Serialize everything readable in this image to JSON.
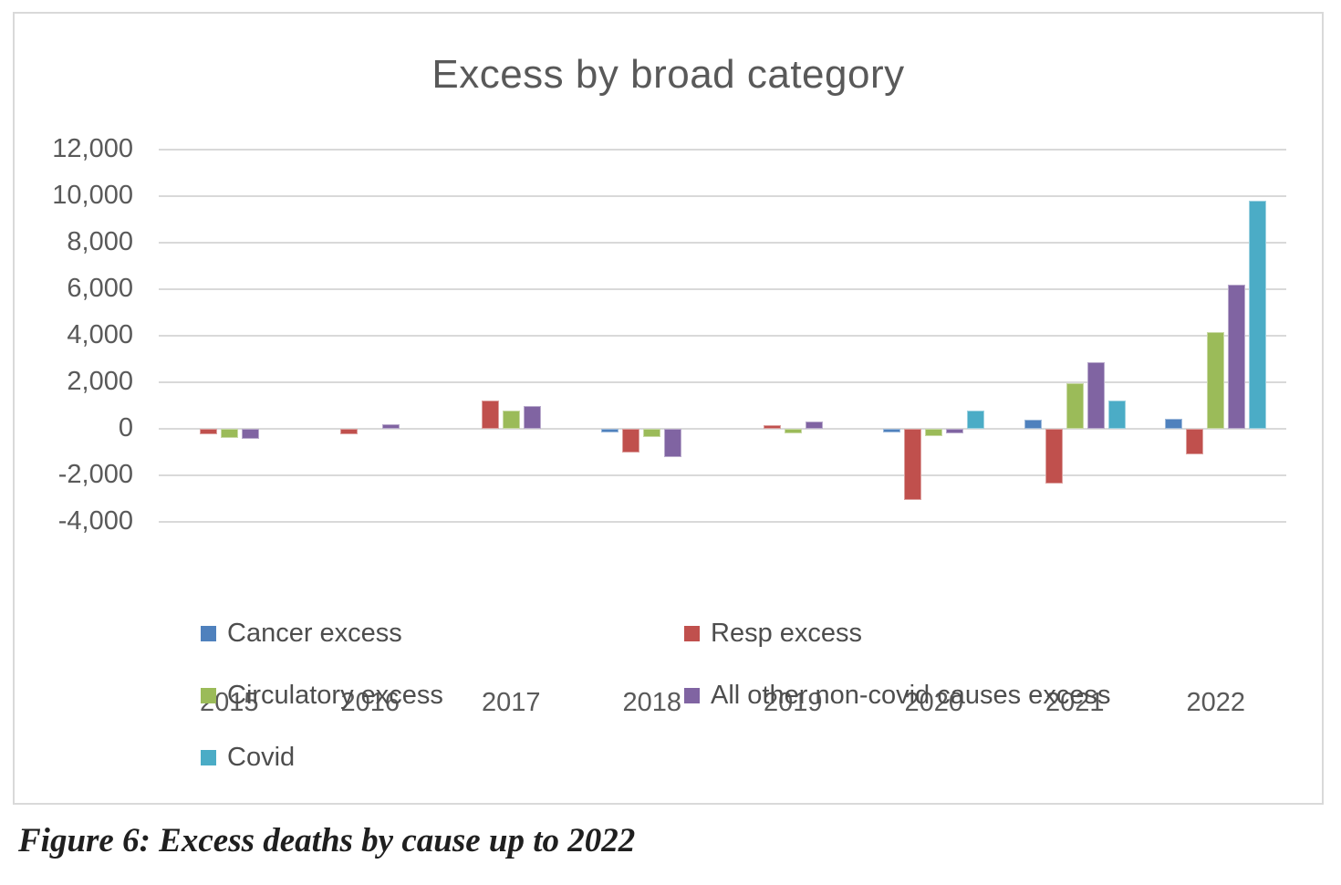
{
  "title": "Excess by broad category",
  "caption": "Figure 6: Excess deaths by cause up to 2022",
  "colors": {
    "cancer": "#4F81BD",
    "resp": "#C0504D",
    "circulatory": "#9BBB59",
    "all_other": "#8064A2",
    "covid": "#4BACC6",
    "gridline": "#D9D9D9",
    "axis_text": "#595959",
    "title_text": "#595959",
    "frame_border": "#D9D9D9"
  },
  "chart_data": {
    "type": "bar",
    "title": "Excess by broad category",
    "categories": [
      "2015",
      "2016",
      "2017",
      "2018",
      "2019",
      "2020",
      "2021",
      "2022"
    ],
    "series": [
      {
        "name": "Cancer excess",
        "color": "#4F81BD",
        "values": [
          0,
          0,
          0,
          -150,
          0,
          -150,
          400,
          450
        ]
      },
      {
        "name": "Resp excess",
        "color": "#C0504D",
        "values": [
          -250,
          -250,
          1200,
          -1000,
          150,
          -3050,
          -2350,
          -1100
        ]
      },
      {
        "name": "Circulatory excess",
        "color": "#9BBB59",
        "values": [
          -400,
          0,
          800,
          -350,
          -200,
          -300,
          1950,
          4150
        ]
      },
      {
        "name": "All other non-covid causes excess",
        "color": "#8064A2",
        "values": [
          -420,
          200,
          1000,
          -1200,
          300,
          -200,
          2850,
          6200
        ]
      },
      {
        "name": "Covid",
        "color": "#4BACC6",
        "values": [
          0,
          0,
          0,
          0,
          0,
          800,
          1200,
          9800
        ]
      }
    ],
    "xlabel": "",
    "ylabel": "",
    "ylim": [
      -4000,
      12000
    ],
    "yticks": [
      12000,
      10000,
      8000,
      6000,
      4000,
      2000,
      0,
      -2000,
      -4000
    ],
    "grid": true,
    "legend_position": "bottom-left"
  }
}
